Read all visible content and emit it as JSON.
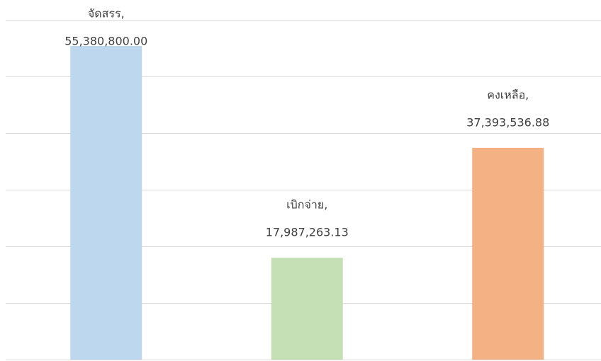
{
  "chart_data": {
    "type": "bar",
    "categories": [
      "จัดสรร,",
      "เบิกจ่าย,",
      "คงเหลือ,"
    ],
    "values": [
      55380800,
      17987263.13,
      37393536.88
    ],
    "value_labels": [
      "55,380,800.00",
      "17,987,263.13",
      "37,393,536.88"
    ],
    "colors": [
      "#bdd7ee",
      "#c5e0b4",
      "#f4b183"
    ],
    "ylim": [
      0,
      60000000
    ],
    "yticks": [
      0,
      10000000,
      20000000,
      30000000,
      40000000,
      50000000,
      60000000
    ],
    "grid": true
  }
}
